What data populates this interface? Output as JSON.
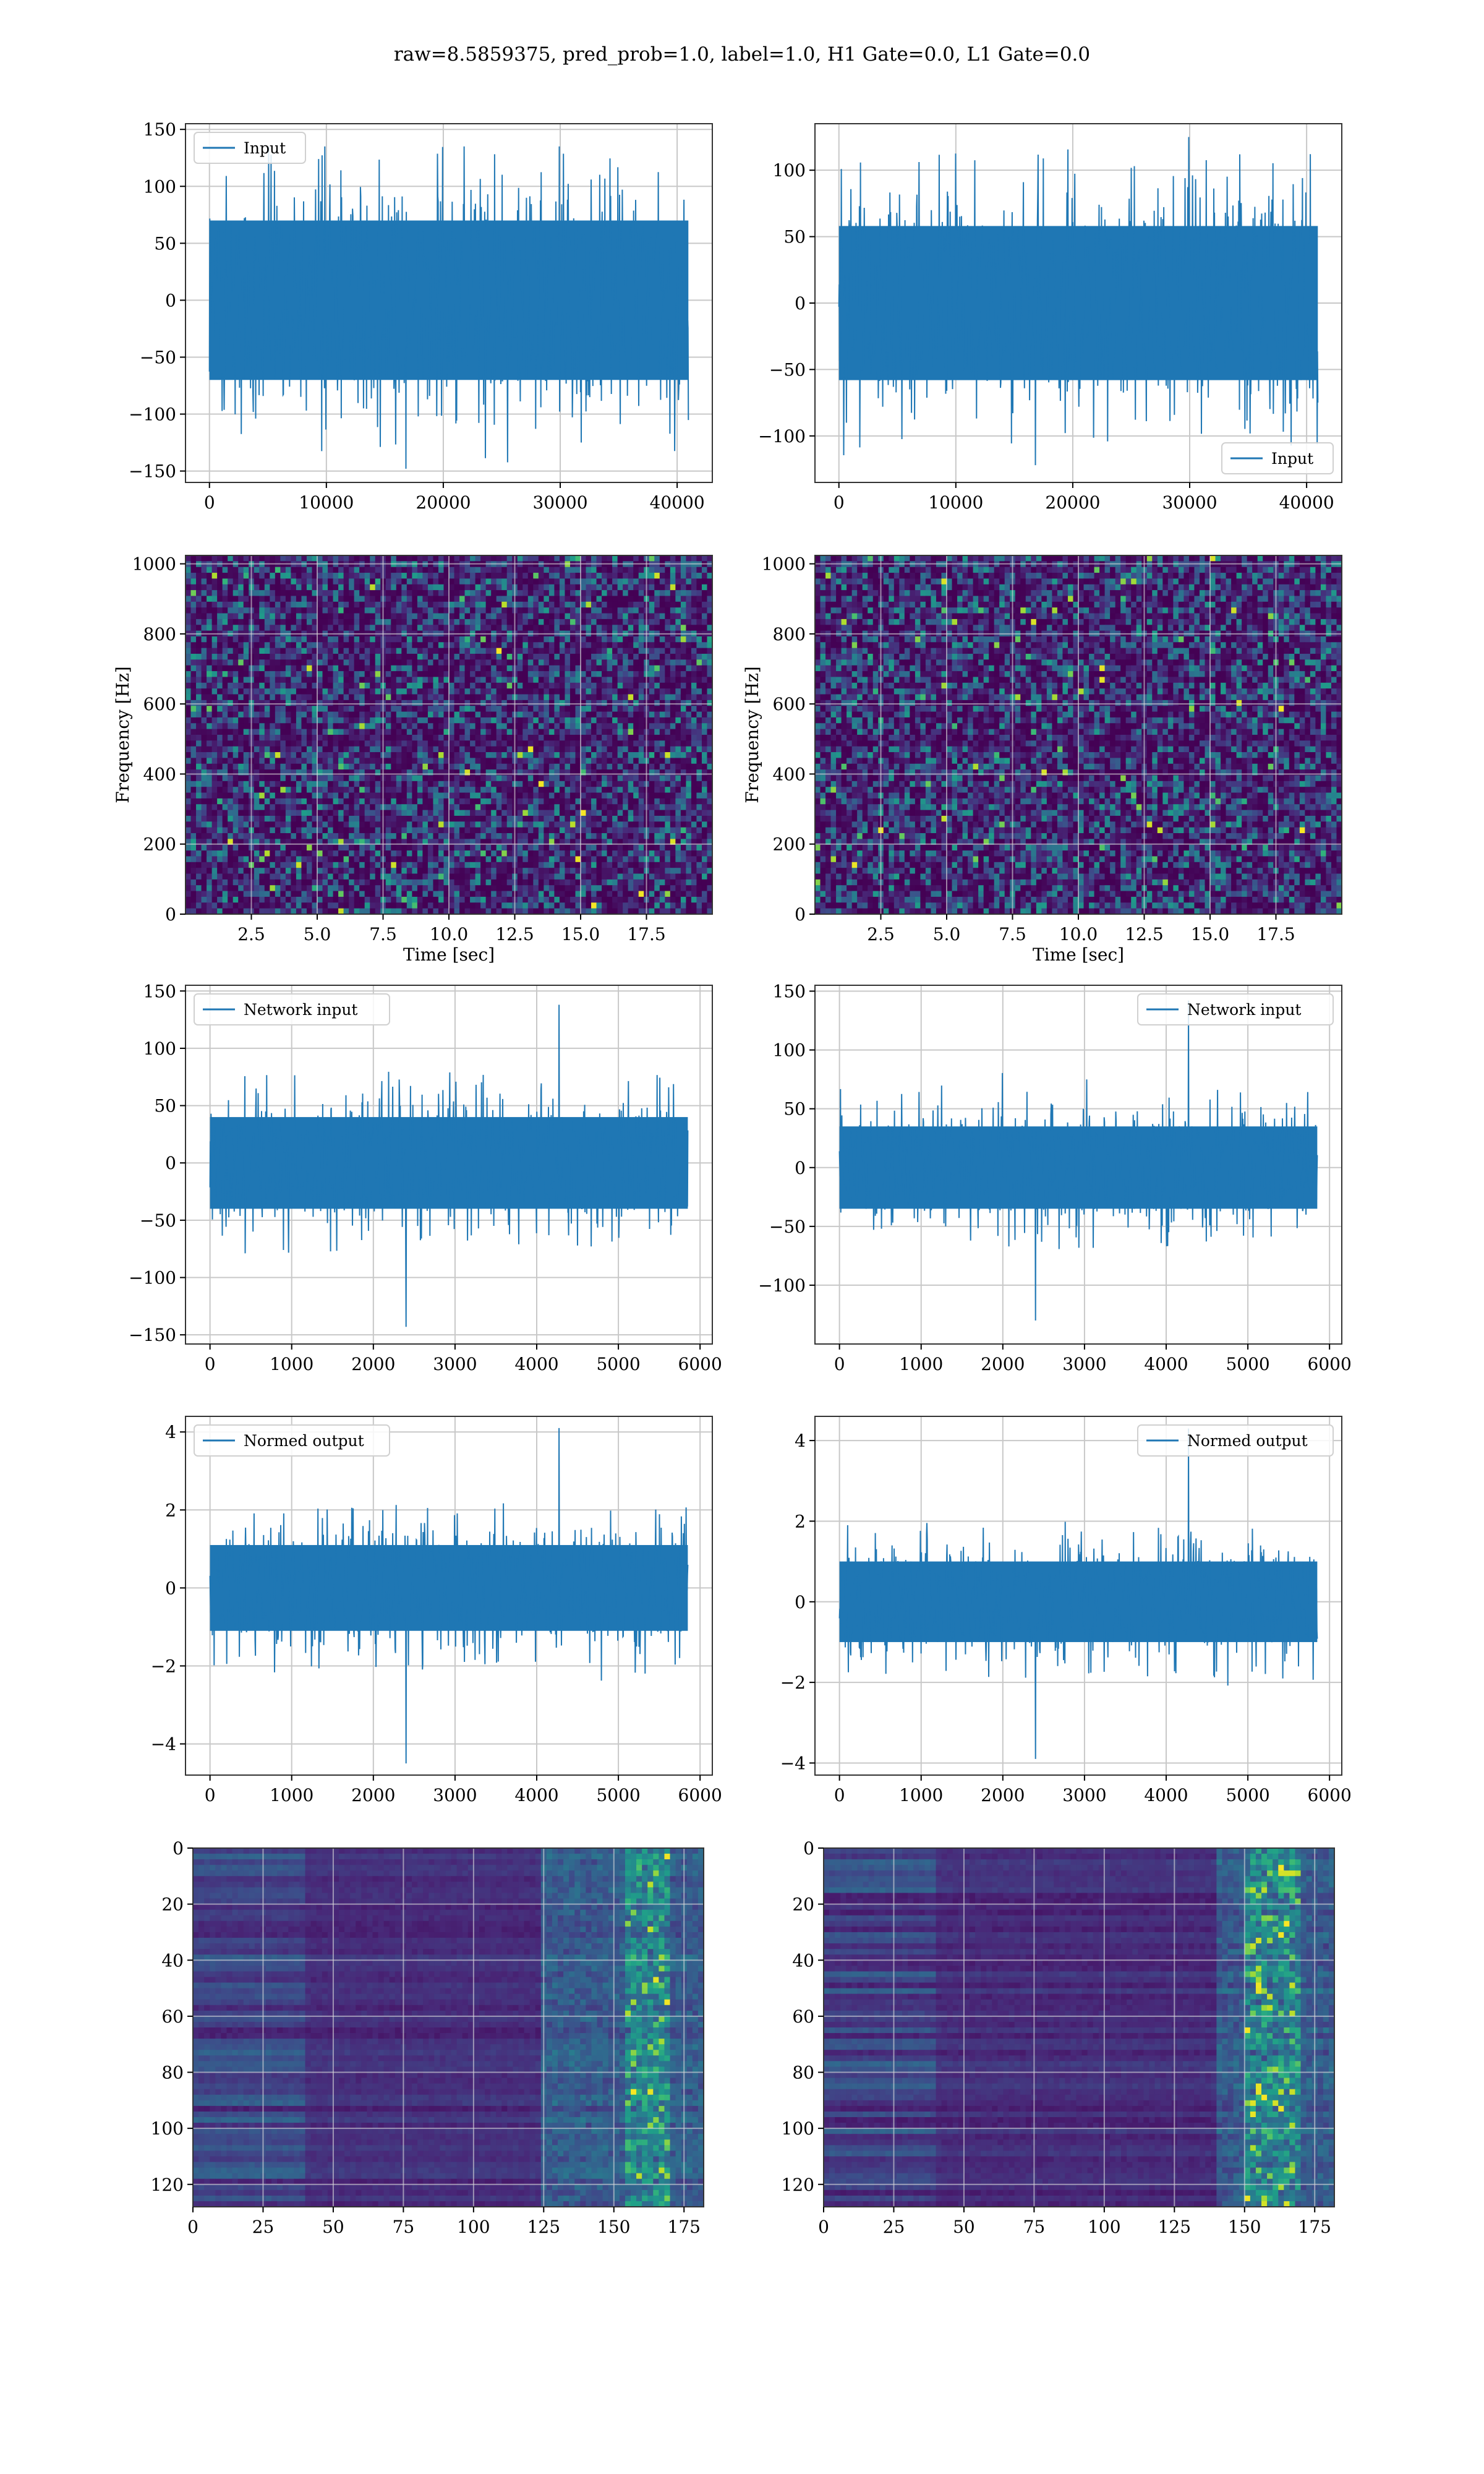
{
  "figure": {
    "suptitle": "raw=8.5859375, pred_prob=1.0, label=1.0, H1 Gate=0.0, L1 Gate=0.0"
  },
  "colors": {
    "series": "#1f77b4",
    "grid": "#c8c8c8",
    "spec_low": "#440154",
    "spec_mid": "#21918c",
    "spec_high": "#fde725"
  },
  "chart_data": [
    {
      "id": "input-h1",
      "type": "line",
      "x_range": [
        0,
        40960
      ],
      "xlim": [
        -2048,
        43008
      ],
      "ylim": [
        -160,
        155
      ],
      "xticks": [
        0,
        10000,
        20000,
        30000,
        40000
      ],
      "yticks": [
        -150,
        -100,
        -50,
        0,
        50,
        100,
        150
      ],
      "xtick_labels": [
        "0",
        "10000",
        "20000",
        "30000",
        "40000"
      ],
      "ytick_labels": [
        "−150",
        "−100",
        "−50",
        "0",
        "50",
        "100",
        "150"
      ],
      "legend": "Input",
      "legend_loc": "upper left",
      "xlabel": "",
      "ylabel": "",
      "band": [
        -70,
        70
      ],
      "peak_max": 135,
      "peak_min": -148,
      "grid": true
    },
    {
      "id": "input-l1",
      "type": "line",
      "x_range": [
        0,
        40960
      ],
      "xlim": [
        -2048,
        43008
      ],
      "ylim": [
        -135,
        135
      ],
      "xticks": [
        0,
        10000,
        20000,
        30000,
        40000
      ],
      "yticks": [
        -100,
        -50,
        0,
        50,
        100
      ],
      "xtick_labels": [
        "0",
        "10000",
        "20000",
        "30000",
        "40000"
      ],
      "ytick_labels": [
        "−100",
        "−50",
        "0",
        "50",
        "100"
      ],
      "legend": "Input",
      "legend_loc": "lower right",
      "xlabel": "",
      "ylabel": "",
      "band": [
        -58,
        58
      ],
      "peak_max": 125,
      "peak_min": -122,
      "grid": true
    },
    {
      "id": "spec-h1",
      "type": "heatmap",
      "kind": "spectrogram",
      "xlim": [
        0,
        20
      ],
      "ylim": [
        0,
        1024
      ],
      "xticks": [
        2.5,
        5.0,
        7.5,
        10.0,
        12.5,
        15.0,
        17.5
      ],
      "yticks": [
        0,
        200,
        400,
        600,
        800,
        1000
      ],
      "xtick_labels": [
        "2.5",
        "5.0",
        "7.5",
        "10.0",
        "12.5",
        "15.0",
        "17.5"
      ],
      "ytick_labels": [
        "0",
        "200",
        "400",
        "600",
        "800",
        "1000"
      ],
      "xlabel": "Time [sec]",
      "ylabel": "Frequency [Hz]",
      "colormap": "viridis",
      "grid": true
    },
    {
      "id": "spec-l1",
      "type": "heatmap",
      "kind": "spectrogram",
      "xlim": [
        0,
        20
      ],
      "ylim": [
        0,
        1024
      ],
      "xticks": [
        2.5,
        5.0,
        7.5,
        10.0,
        12.5,
        15.0,
        17.5
      ],
      "yticks": [
        0,
        200,
        400,
        600,
        800,
        1000
      ],
      "xtick_labels": [
        "2.5",
        "5.0",
        "7.5",
        "10.0",
        "12.5",
        "15.0",
        "17.5"
      ],
      "ytick_labels": [
        "0",
        "200",
        "400",
        "600",
        "800",
        "1000"
      ],
      "xlabel": "Time [sec]",
      "ylabel": "Frequency [Hz]",
      "colormap": "viridis",
      "grid": true
    },
    {
      "id": "netin-h1",
      "type": "line",
      "x_range": [
        0,
        5850
      ],
      "xlim": [
        -300,
        6150
      ],
      "ylim": [
        -158,
        155
      ],
      "xticks": [
        0,
        1000,
        2000,
        3000,
        4000,
        5000,
        6000
      ],
      "yticks": [
        -150,
        -100,
        -50,
        0,
        50,
        100,
        150
      ],
      "xtick_labels": [
        "0",
        "1000",
        "2000",
        "3000",
        "4000",
        "5000",
        "6000"
      ],
      "ytick_labels": [
        "−150",
        "−100",
        "−50",
        "0",
        "50",
        "100",
        "150"
      ],
      "legend": "Network input",
      "legend_loc": "upper left",
      "xlabel": "",
      "ylabel": "",
      "band": [
        -40,
        40
      ],
      "peak_max": 138,
      "peak_min": -143,
      "grid": true
    },
    {
      "id": "netin-l1",
      "type": "line",
      "x_range": [
        0,
        5850
      ],
      "xlim": [
        -300,
        6150
      ],
      "ylim": [
        -150,
        155
      ],
      "xticks": [
        0,
        1000,
        2000,
        3000,
        4000,
        5000,
        6000
      ],
      "yticks": [
        -100,
        -50,
        0,
        50,
        100,
        150
      ],
      "xtick_labels": [
        "0",
        "1000",
        "2000",
        "3000",
        "4000",
        "5000",
        "6000"
      ],
      "ytick_labels": [
        "−100",
        "−50",
        "0",
        "50",
        "100",
        "150"
      ],
      "legend": "Network input",
      "legend_loc": "upper right",
      "xlabel": "",
      "ylabel": "",
      "band": [
        -35,
        35
      ],
      "peak_max": 142,
      "peak_min": -130,
      "grid": true
    },
    {
      "id": "normed-h1",
      "type": "line",
      "x_range": [
        0,
        5850
      ],
      "xlim": [
        -300,
        6150
      ],
      "ylim": [
        -4.8,
        4.4
      ],
      "xticks": [
        0,
        1000,
        2000,
        3000,
        4000,
        5000,
        6000
      ],
      "yticks": [
        -4,
        -2,
        0,
        2,
        4
      ],
      "xtick_labels": [
        "0",
        "1000",
        "2000",
        "3000",
        "4000",
        "5000",
        "6000"
      ],
      "ytick_labels": [
        "−4",
        "−2",
        "0",
        "2",
        "4"
      ],
      "legend": "Normed output",
      "legend_loc": "upper left",
      "xlabel": "",
      "ylabel": "",
      "band": [
        -1.1,
        1.1
      ],
      "peak_max": 4.1,
      "peak_min": -4.5,
      "grid": true
    },
    {
      "id": "normed-l1",
      "type": "line",
      "x_range": [
        0,
        5850
      ],
      "xlim": [
        -300,
        6150
      ],
      "ylim": [
        -4.3,
        4.6
      ],
      "xticks": [
        0,
        1000,
        2000,
        3000,
        4000,
        5000,
        6000
      ],
      "yticks": [
        -4,
        -2,
        0,
        2,
        4
      ],
      "xtick_labels": [
        "0",
        "1000",
        "2000",
        "3000",
        "4000",
        "5000",
        "6000"
      ],
      "ytick_labels": [
        "−4",
        "−2",
        "0",
        "2",
        "4"
      ],
      "legend": "Normed output",
      "legend_loc": "upper right",
      "xlabel": "",
      "ylabel": "",
      "band": [
        -1.0,
        1.0
      ],
      "peak_max": 4.3,
      "peak_min": -3.9,
      "grid": true
    },
    {
      "id": "feat-h1",
      "type": "heatmap",
      "kind": "feature_map",
      "xlim": [
        0,
        182
      ],
      "ylim": [
        128,
        0
      ],
      "xticks": [
        0,
        25,
        50,
        75,
        100,
        125,
        150,
        175
      ],
      "yticks": [
        0,
        20,
        40,
        60,
        80,
        100,
        120
      ],
      "xtick_labels": [
        "0",
        "25",
        "50",
        "75",
        "100",
        "125",
        "150",
        "175"
      ],
      "ytick_labels": [
        "0",
        "20",
        "40",
        "60",
        "80",
        "100",
        "120"
      ],
      "active_columns": [
        125,
        182
      ],
      "hot_columns": [
        155,
        170
      ],
      "colormap": "viridis",
      "grid": true
    },
    {
      "id": "feat-l1",
      "type": "heatmap",
      "kind": "feature_map",
      "xlim": [
        0,
        182
      ],
      "ylim": [
        128,
        0
      ],
      "xticks": [
        0,
        25,
        50,
        75,
        100,
        125,
        150,
        175
      ],
      "yticks": [
        0,
        20,
        40,
        60,
        80,
        100,
        120
      ],
      "xtick_labels": [
        "0",
        "25",
        "50",
        "75",
        "100",
        "125",
        "150",
        "175"
      ],
      "ytick_labels": [
        "0",
        "20",
        "40",
        "60",
        "80",
        "100",
        "120"
      ],
      "active_columns": [
        140,
        182
      ],
      "hot_columns": [
        150,
        170
      ],
      "colormap": "viridis",
      "grid": true
    }
  ]
}
